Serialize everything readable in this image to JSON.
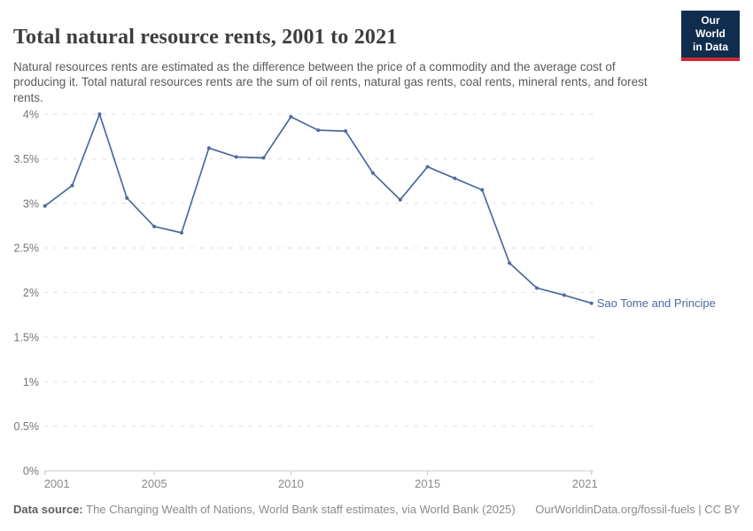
{
  "header": {
    "title": "Total natural resource rents, 2001 to 2021",
    "subtitle": "Natural resources rents are estimated as the difference between the price of a commodity and the average cost of producing it. Total natural resources rents are the sum of oil rents, natural gas rents, coal rents, mineral rents, and forest rents.",
    "logo": {
      "line1": "Our World",
      "line2": "in Data"
    }
  },
  "chart_data": {
    "type": "line",
    "title": "Total natural resource rents, 2001 to 2021",
    "xlabel": "",
    "ylabel": "",
    "xlim": [
      2001,
      2021
    ],
    "ylim": [
      0,
      4
    ],
    "x_ticks": [
      2001,
      2005,
      2010,
      2015,
      2021
    ],
    "y_ticks": [
      0,
      0.5,
      1,
      1.5,
      2,
      2.5,
      3,
      3.5,
      4
    ],
    "y_tick_suffix": "%",
    "grid": "horizontal-dashed",
    "legend_position": "end-of-line-label",
    "series": [
      {
        "name": "Sao Tome and Principe",
        "color": "#4C6AA0",
        "x": [
          2001,
          2002,
          2003,
          2004,
          2005,
          2006,
          2007,
          2008,
          2009,
          2010,
          2011,
          2012,
          2013,
          2014,
          2015,
          2016,
          2017,
          2018,
          2019,
          2020,
          2021
        ],
        "values": [
          2.97,
          3.2,
          4.0,
          3.06,
          2.74,
          2.67,
          3.62,
          3.52,
          3.51,
          3.97,
          3.82,
          3.81,
          3.34,
          3.04,
          3.41,
          3.28,
          3.15,
          2.33,
          2.05,
          1.97,
          1.88
        ]
      }
    ]
  },
  "footer": {
    "source_label": "Data source:",
    "source_text": " The Changing Wealth of Nations, World Bank staff estimates, via World Bank (2025)",
    "rights": "OurWorldinData.org/fossil-fuels | CC BY"
  },
  "colors": {
    "line": "#4C6AA0",
    "grid": "#dcdcdc",
    "axis": "#c8c8c8",
    "tick_label": "#757575",
    "logo_bg": "#102D4E",
    "logo_accent": "#CD2837"
  }
}
